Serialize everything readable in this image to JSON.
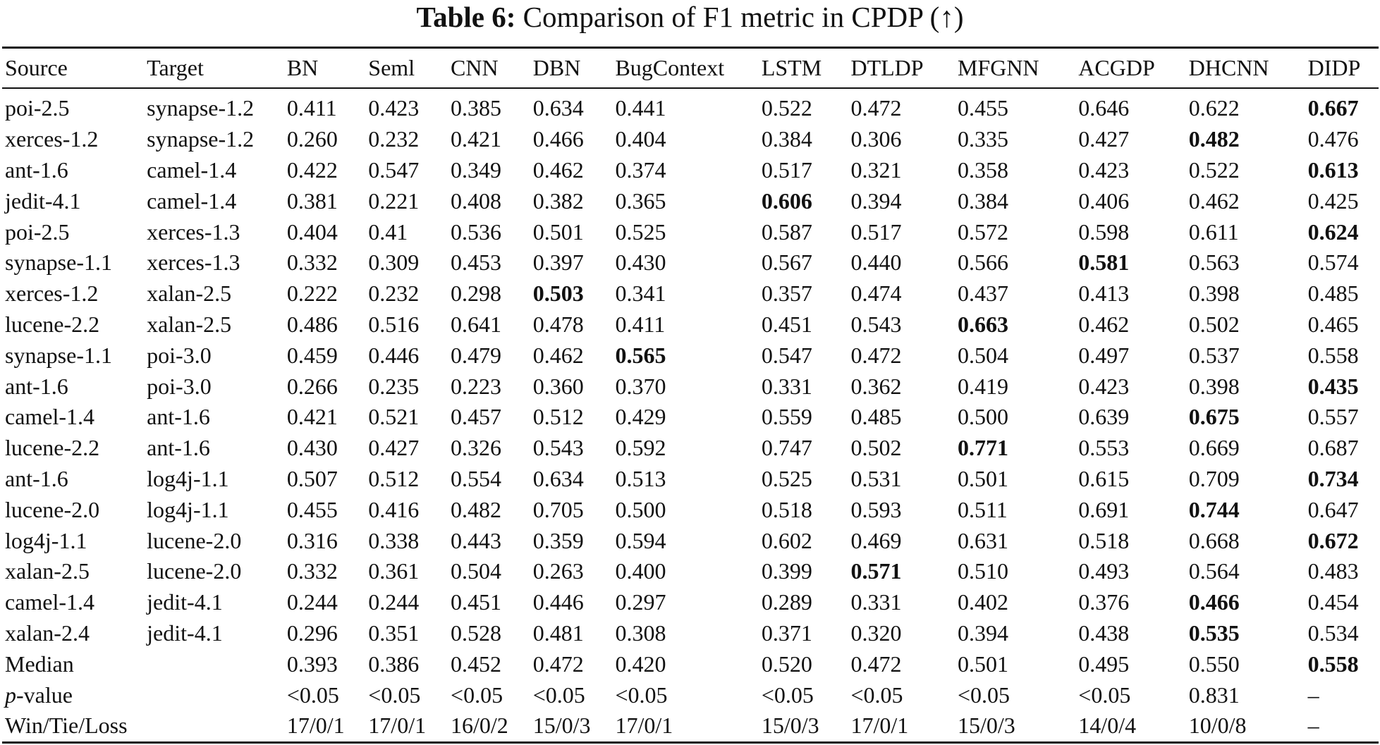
{
  "caption": {
    "label": "Table 6:",
    "text": "Comparison of F1 metric in CPDP (↑)"
  },
  "table": {
    "headers": [
      "Source",
      "Target",
      "BN",
      "Seml",
      "CNN",
      "DBN",
      "BugContext",
      "LSTM",
      "DTLDP",
      "MFGNN",
      "ACGDP",
      "DHCNN",
      "DIDP"
    ],
    "rows": [
      {
        "cells": [
          "poi-2.5",
          "synapse-1.2",
          "0.411",
          "0.423",
          "0.385",
          "0.634",
          "0.441",
          "0.522",
          "0.472",
          "0.455",
          "0.646",
          "0.622",
          "0.667"
        ],
        "bold": 12
      },
      {
        "cells": [
          "xerces-1.2",
          "synapse-1.2",
          "0.260",
          "0.232",
          "0.421",
          "0.466",
          "0.404",
          "0.384",
          "0.306",
          "0.335",
          "0.427",
          "0.482",
          "0.476"
        ],
        "bold": 11
      },
      {
        "cells": [
          "ant-1.6",
          "camel-1.4",
          "0.422",
          "0.547",
          "0.349",
          "0.462",
          "0.374",
          "0.517",
          "0.321",
          "0.358",
          "0.423",
          "0.522",
          "0.613"
        ],
        "bold": 12
      },
      {
        "cells": [
          "jedit-4.1",
          "camel-1.4",
          "0.381",
          "0.221",
          "0.408",
          "0.382",
          "0.365",
          "0.606",
          "0.394",
          "0.384",
          "0.406",
          "0.462",
          "0.425"
        ],
        "bold": 7
      },
      {
        "cells": [
          "poi-2.5",
          "xerces-1.3",
          "0.404",
          "0.41",
          "0.536",
          "0.501",
          "0.525",
          "0.587",
          "0.517",
          "0.572",
          "0.598",
          "0.611",
          "0.624"
        ],
        "bold": 12
      },
      {
        "cells": [
          "synapse-1.1",
          "xerces-1.3",
          "0.332",
          "0.309",
          "0.453",
          "0.397",
          "0.430",
          "0.567",
          "0.440",
          "0.566",
          "0.581",
          "0.563",
          "0.574"
        ],
        "bold": 10
      },
      {
        "cells": [
          "xerces-1.2",
          "xalan-2.5",
          "0.222",
          "0.232",
          "0.298",
          "0.503",
          "0.341",
          "0.357",
          "0.474",
          "0.437",
          "0.413",
          "0.398",
          "0.485"
        ],
        "bold": 5
      },
      {
        "cells": [
          "lucene-2.2",
          "xalan-2.5",
          "0.486",
          "0.516",
          "0.641",
          "0.478",
          "0.411",
          "0.451",
          "0.543",
          "0.663",
          "0.462",
          "0.502",
          "0.465"
        ],
        "bold": 9
      },
      {
        "cells": [
          "synapse-1.1",
          "poi-3.0",
          "0.459",
          "0.446",
          "0.479",
          "0.462",
          "0.565",
          "0.547",
          "0.472",
          "0.504",
          "0.497",
          "0.537",
          "0.558"
        ],
        "bold": 6
      },
      {
        "cells": [
          "ant-1.6",
          "poi-3.0",
          "0.266",
          "0.235",
          "0.223",
          "0.360",
          "0.370",
          "0.331",
          "0.362",
          "0.419",
          "0.423",
          "0.398",
          "0.435"
        ],
        "bold": 12
      },
      {
        "cells": [
          "camel-1.4",
          "ant-1.6",
          "0.421",
          "0.521",
          "0.457",
          "0.512",
          "0.429",
          "0.559",
          "0.485",
          "0.500",
          "0.639",
          "0.675",
          "0.557"
        ],
        "bold": 11
      },
      {
        "cells": [
          "lucene-2.2",
          "ant-1.6",
          "0.430",
          "0.427",
          "0.326",
          "0.543",
          "0.592",
          "0.747",
          "0.502",
          "0.771",
          "0.553",
          "0.669",
          "0.687"
        ],
        "bold": 9
      },
      {
        "cells": [
          "ant-1.6",
          "log4j-1.1",
          "0.507",
          "0.512",
          "0.554",
          "0.634",
          "0.513",
          "0.525",
          "0.531",
          "0.501",
          "0.615",
          "0.709",
          "0.734"
        ],
        "bold": 12
      },
      {
        "cells": [
          "lucene-2.0",
          "log4j-1.1",
          "0.455",
          "0.416",
          "0.482",
          "0.705",
          "0.500",
          "0.518",
          "0.593",
          "0.511",
          "0.691",
          "0.744",
          "0.647"
        ],
        "bold": 11
      },
      {
        "cells": [
          "log4j-1.1",
          "lucene-2.0",
          "0.316",
          "0.338",
          "0.443",
          "0.359",
          "0.594",
          "0.602",
          "0.469",
          "0.631",
          "0.518",
          "0.668",
          "0.672"
        ],
        "bold": 12
      },
      {
        "cells": [
          "xalan-2.5",
          "lucene-2.0",
          "0.332",
          "0.361",
          "0.504",
          "0.263",
          "0.400",
          "0.399",
          "0.571",
          "0.510",
          "0.493",
          "0.564",
          "0.483"
        ],
        "bold": 8
      },
      {
        "cells": [
          "camel-1.4",
          "jedit-4.1",
          "0.244",
          "0.244",
          "0.451",
          "0.446",
          "0.297",
          "0.289",
          "0.331",
          "0.402",
          "0.376",
          "0.466",
          "0.454"
        ],
        "bold": 11
      },
      {
        "cells": [
          "xalan-2.4",
          "jedit-4.1",
          "0.296",
          "0.351",
          "0.528",
          "0.481",
          "0.308",
          "0.371",
          "0.320",
          "0.394",
          "0.438",
          "0.535",
          "0.534"
        ],
        "bold": 11
      },
      {
        "cells": [
          "Median",
          "",
          "0.393",
          "0.386",
          "0.452",
          "0.472",
          "0.420",
          "0.520",
          "0.472",
          "0.501",
          "0.495",
          "0.550",
          "0.558"
        ],
        "bold": 12
      },
      {
        "cells": [
          "p-value",
          "",
          "<0.05",
          "<0.05",
          "<0.05",
          "<0.05",
          "<0.05",
          "<0.05",
          "<0.05",
          "<0.05",
          "<0.05",
          "0.831",
          "–"
        ],
        "bold": null
      },
      {
        "cells": [
          "Win/Tie/Loss",
          "",
          "17/0/1",
          "17/0/1",
          "16/0/2",
          "15/0/3",
          "17/0/1",
          "15/0/3",
          "17/0/1",
          "15/0/3",
          "14/0/4",
          "10/0/8",
          "–"
        ],
        "bold": null
      }
    ]
  }
}
